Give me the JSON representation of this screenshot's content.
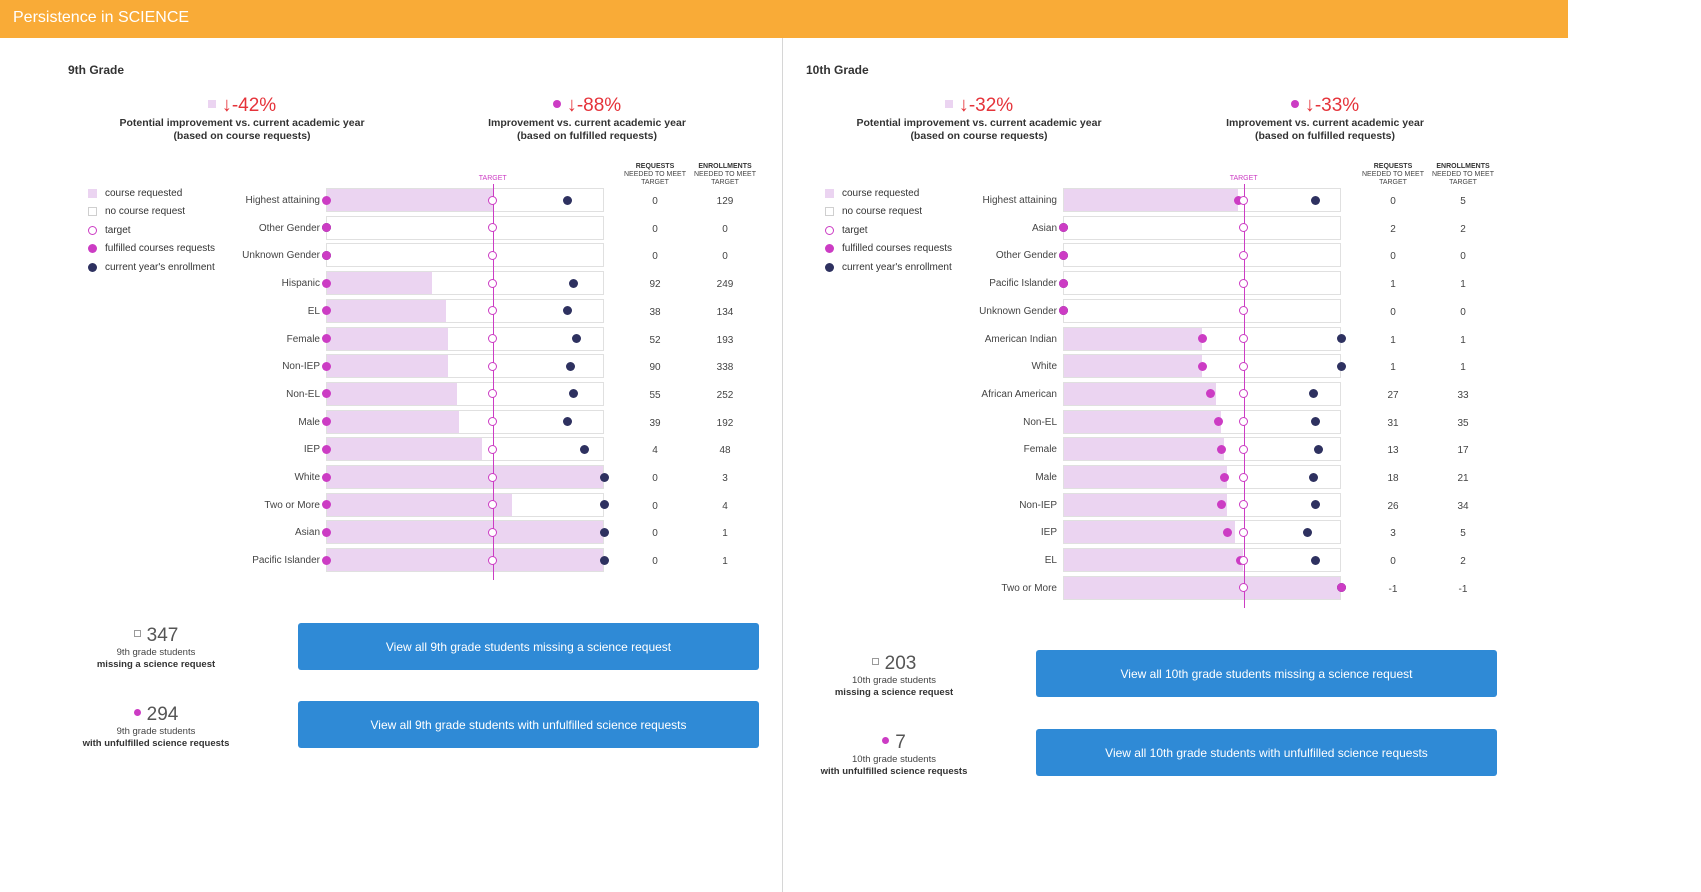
{
  "header": {
    "title": "Persistence in SCIENCE"
  },
  "colors": {
    "header": "#f9ab37",
    "requested": "#ebd4f1",
    "fulfilled": "#cc3cc4",
    "enrollment": "#2e3160",
    "button": "#2f8ad6",
    "negative": "#e5333a"
  },
  "legend": {
    "course_requested": "course requested",
    "no_course_request": "no course request",
    "target": "target",
    "fulfilled": "fulfilled courses requests",
    "current": "current year's enrollment"
  },
  "table_headers": {
    "requests_title": "REQUESTS",
    "requests_sub": "NEEDED TO MEET TARGET",
    "enroll_title": "ENROLLMENTS",
    "enroll_sub": "NEEDED TO MEET TARGET",
    "target_label": "TARGET"
  },
  "panels": [
    {
      "grade": "9th Grade",
      "kpi_requests": {
        "arrow": "↓",
        "value": "-42%",
        "label1": "Potential improvement vs. current academic year",
        "label2": "(based on course requests)"
      },
      "kpi_fulfilled": {
        "arrow": "↓",
        "value": "-88%",
        "label1": "Improvement vs. current academic year",
        "label2": "(based on fulfilled requests)"
      },
      "chart_data": {
        "type": "dot-bar",
        "target": 0.6,
        "rows": [
          {
            "label": "Highest attaining",
            "requested": 0.6,
            "fulfilled": 0.0,
            "current": 0.87,
            "requests_needed": "0",
            "enrollments_needed": "129"
          },
          {
            "label": "Other Gender",
            "requested": 0.0,
            "fulfilled": 0.0,
            "current": 0.0,
            "requests_needed": "0",
            "enrollments_needed": "0"
          },
          {
            "label": "Unknown Gender",
            "requested": 0.0,
            "fulfilled": 0.0,
            "current": 0.0,
            "requests_needed": "0",
            "enrollments_needed": "0"
          },
          {
            "label": "Hispanic",
            "requested": 0.38,
            "fulfilled": 0.0,
            "current": 0.89,
            "requests_needed": "92",
            "enrollments_needed": "249"
          },
          {
            "label": "EL",
            "requested": 0.43,
            "fulfilled": 0.0,
            "current": 0.87,
            "requests_needed": "38",
            "enrollments_needed": "134"
          },
          {
            "label": "Female",
            "requested": 0.44,
            "fulfilled": 0.0,
            "current": 0.9,
            "requests_needed": "52",
            "enrollments_needed": "193"
          },
          {
            "label": "Non-IEP",
            "requested": 0.44,
            "fulfilled": 0.0,
            "current": 0.88,
            "requests_needed": "90",
            "enrollments_needed": "338"
          },
          {
            "label": "Non-EL",
            "requested": 0.47,
            "fulfilled": 0.0,
            "current": 0.89,
            "requests_needed": "55",
            "enrollments_needed": "252"
          },
          {
            "label": "Male",
            "requested": 0.48,
            "fulfilled": 0.0,
            "current": 0.87,
            "requests_needed": "39",
            "enrollments_needed": "192"
          },
          {
            "label": "IEP",
            "requested": 0.56,
            "fulfilled": 0.0,
            "current": 0.93,
            "requests_needed": "4",
            "enrollments_needed": "48"
          },
          {
            "label": "White",
            "requested": 1.0,
            "fulfilled": 0.0,
            "current": 1.0,
            "requests_needed": "0",
            "enrollments_needed": "3"
          },
          {
            "label": "Two or More",
            "requested": 0.67,
            "fulfilled": 0.0,
            "current": 1.0,
            "requests_needed": "0",
            "enrollments_needed": "4"
          },
          {
            "label": "Asian",
            "requested": 1.0,
            "fulfilled": 0.0,
            "current": 1.0,
            "requests_needed": "0",
            "enrollments_needed": "1"
          },
          {
            "label": "Pacific Islander",
            "requested": 1.0,
            "fulfilled": 0.0,
            "current": 1.0,
            "requests_needed": "0",
            "enrollments_needed": "1"
          }
        ]
      },
      "missing": {
        "count": "347",
        "line1": "9th grade students",
        "line2": "missing a science request"
      },
      "unfulfilled": {
        "count": "294",
        "line1": "9th grade students",
        "line2": "with unfulfilled science requests"
      },
      "button_missing": "View all 9th grade students missing a science request",
      "button_unfulfilled": "View all 9th grade students with unfulfilled science requests"
    },
    {
      "grade": "10th Grade",
      "kpi_requests": {
        "arrow": "↓",
        "value": "-32%",
        "label1": "Potential improvement vs. current academic year",
        "label2": "(based on course requests)"
      },
      "kpi_fulfilled": {
        "arrow": "↓",
        "value": "-33%",
        "label1": "Improvement vs. current academic year",
        "label2": "(based on fulfilled requests)"
      },
      "chart_data": {
        "type": "dot-bar",
        "target": 0.65,
        "rows": [
          {
            "label": "Highest attaining",
            "requested": 0.63,
            "fulfilled": 0.63,
            "current": 0.91,
            "requests_needed": "0",
            "enrollments_needed": "5"
          },
          {
            "label": "Asian",
            "requested": 0.0,
            "fulfilled": 0.0,
            "current": 0.0,
            "requests_needed": "2",
            "enrollments_needed": "2"
          },
          {
            "label": "Other Gender",
            "requested": 0.0,
            "fulfilled": 0.0,
            "current": 0.0,
            "requests_needed": "0",
            "enrollments_needed": "0"
          },
          {
            "label": "Pacific Islander",
            "requested": 0.0,
            "fulfilled": 0.0,
            "current": 0.0,
            "requests_needed": "1",
            "enrollments_needed": "1"
          },
          {
            "label": "Unknown Gender",
            "requested": 0.0,
            "fulfilled": 0.0,
            "current": 0.0,
            "requests_needed": "0",
            "enrollments_needed": "0"
          },
          {
            "label": "American Indian",
            "requested": 0.5,
            "fulfilled": 0.5,
            "current": 1.0,
            "requests_needed": "1",
            "enrollments_needed": "1"
          },
          {
            "label": "White",
            "requested": 0.5,
            "fulfilled": 0.5,
            "current": 1.0,
            "requests_needed": "1",
            "enrollments_needed": "1"
          },
          {
            "label": "African American",
            "requested": 0.55,
            "fulfilled": 0.53,
            "current": 0.9,
            "requests_needed": "27",
            "enrollments_needed": "33"
          },
          {
            "label": "Non-EL",
            "requested": 0.57,
            "fulfilled": 0.56,
            "current": 0.91,
            "requests_needed": "31",
            "enrollments_needed": "35"
          },
          {
            "label": "Female",
            "requested": 0.58,
            "fulfilled": 0.57,
            "current": 0.92,
            "requests_needed": "13",
            "enrollments_needed": "17"
          },
          {
            "label": "Male",
            "requested": 0.59,
            "fulfilled": 0.58,
            "current": 0.9,
            "requests_needed": "18",
            "enrollments_needed": "21"
          },
          {
            "label": "Non-IEP",
            "requested": 0.59,
            "fulfilled": 0.57,
            "current": 0.91,
            "requests_needed": "26",
            "enrollments_needed": "34"
          },
          {
            "label": "IEP",
            "requested": 0.62,
            "fulfilled": 0.59,
            "current": 0.88,
            "requests_needed": "3",
            "enrollments_needed": "5"
          },
          {
            "label": "EL",
            "requested": 0.65,
            "fulfilled": 0.64,
            "current": 0.91,
            "requests_needed": "0",
            "enrollments_needed": "2"
          },
          {
            "label": "Two or More",
            "requested": 1.0,
            "fulfilled": 1.0,
            "current": 1.0,
            "requests_needed": "-1",
            "enrollments_needed": "-1"
          }
        ]
      },
      "missing": {
        "count": "203",
        "line1": "10th grade students",
        "line2": "missing a science request"
      },
      "unfulfilled": {
        "count": "7",
        "line1": "10th grade students",
        "line2": "with unfulfilled science requests"
      },
      "button_missing": "View all 10th grade students missing a science request",
      "button_unfulfilled": "View all 10th grade students with unfulfilled science requests"
    }
  ]
}
